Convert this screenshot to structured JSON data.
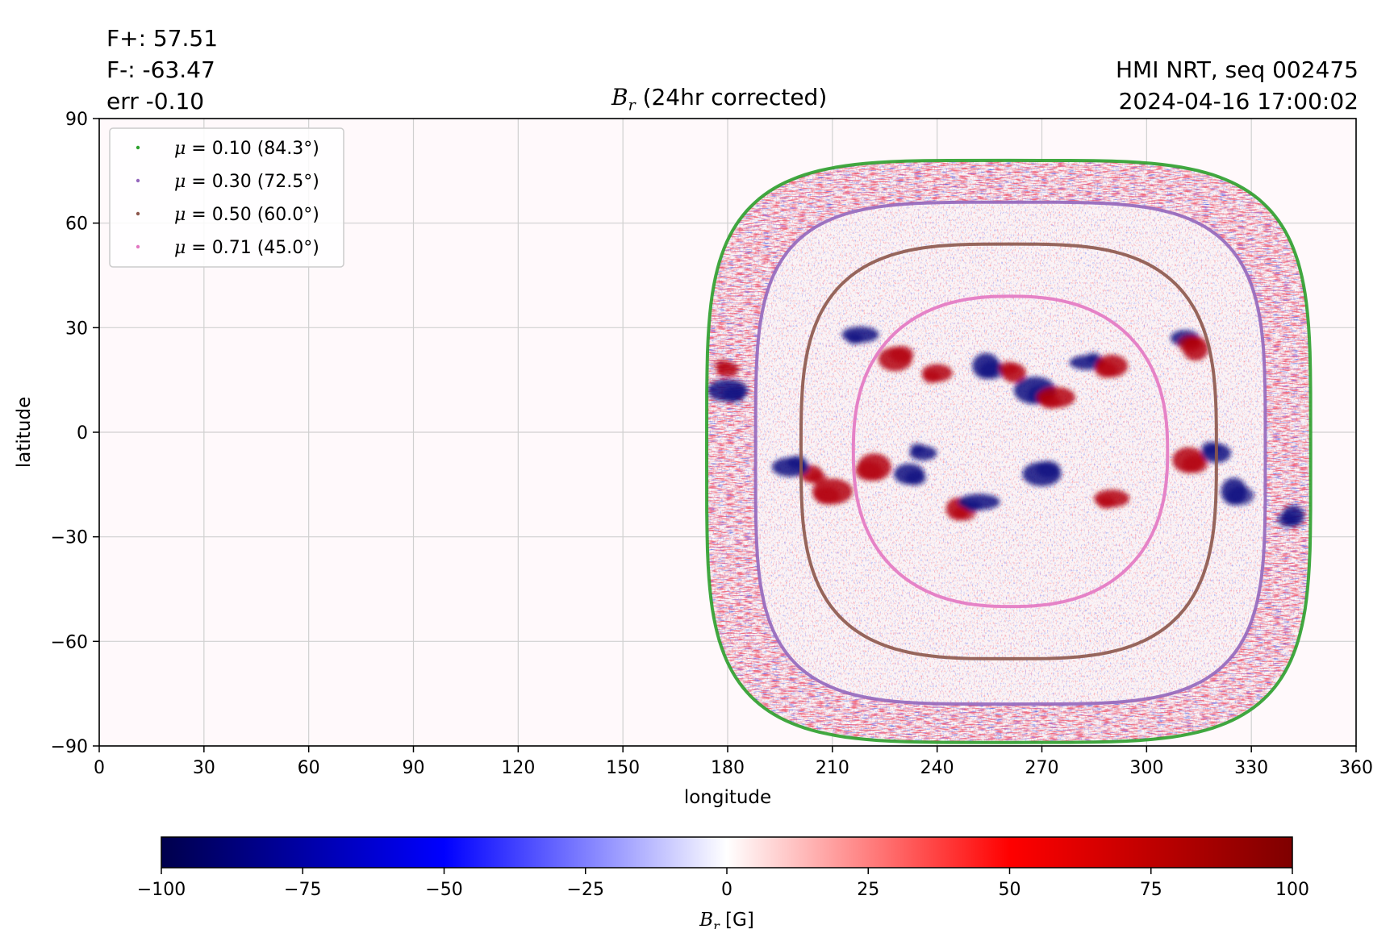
{
  "chart_data": {
    "type": "heatmap",
    "title": "B_r (24hr corrected)",
    "title_symbol": "B",
    "title_subscript": "r",
    "title_suffix": " (24hr corrected)",
    "xlabel": "longitude",
    "ylabel": "latitude",
    "xlim": [
      0,
      360
    ],
    "ylim": [
      -90,
      90
    ],
    "xticks": [
      0,
      30,
      60,
      90,
      120,
      150,
      180,
      210,
      240,
      270,
      300,
      330,
      360
    ],
    "yticks": [
      -90,
      -60,
      -30,
      0,
      30,
      60,
      90
    ],
    "grid": true,
    "legend_position": "top-left",
    "legend": [
      {
        "label": "μ = 0.10 (84.3°)",
        "color": "#2ca02c"
      },
      {
        "label": "μ = 0.30 (72.5°)",
        "color": "#9467bd"
      },
      {
        "label": "μ = 0.50 (60.0°)",
        "color": "#8c564b"
      },
      {
        "label": "μ = 0.71 (45.0°)",
        "color": "#e377c2"
      }
    ],
    "mu_contours": [
      {
        "mu": 0.1,
        "angle_deg": 84.3,
        "color": "#2ca02c",
        "lon_min": 174,
        "lon_max": 347,
        "lat_min": -89,
        "lat_max": 78
      },
      {
        "mu": 0.3,
        "angle_deg": 72.5,
        "color": "#9467bd",
        "lon_min": 188,
        "lon_max": 334,
        "lat_min": -78,
        "lat_max": 66
      },
      {
        "mu": 0.5,
        "angle_deg": 60.0,
        "color": "#8c564b",
        "lon_min": 201,
        "lon_max": 320,
        "lat_min": -65,
        "lat_max": 54
      },
      {
        "mu": 0.71,
        "angle_deg": 45.0,
        "color": "#e377c2",
        "lon_min": 216,
        "lon_max": 306,
        "lat_min": -50,
        "lat_max": 39
      }
    ],
    "active_regions": [
      {
        "lon": 180,
        "lat": 18,
        "sign": "+"
      },
      {
        "lon": 180,
        "lat": 12,
        "sign": "-"
      },
      {
        "lon": 218,
        "lat": 28,
        "sign": "-"
      },
      {
        "lon": 228,
        "lat": 21,
        "sign": "+"
      },
      {
        "lon": 240,
        "lat": 17,
        "sign": "+"
      },
      {
        "lon": 254,
        "lat": 19,
        "sign": "-"
      },
      {
        "lon": 262,
        "lat": 17,
        "sign": "+"
      },
      {
        "lon": 268,
        "lat": 12,
        "sign": "-"
      },
      {
        "lon": 274,
        "lat": 10,
        "sign": "+"
      },
      {
        "lon": 283,
        "lat": 20,
        "sign": "-"
      },
      {
        "lon": 290,
        "lat": 19,
        "sign": "+"
      },
      {
        "lon": 311,
        "lat": 27,
        "sign": "-"
      },
      {
        "lon": 314,
        "lat": 24,
        "sign": "+"
      },
      {
        "lon": 204,
        "lat": -12,
        "sign": "+"
      },
      {
        "lon": 210,
        "lat": -17,
        "sign": "+"
      },
      {
        "lon": 198,
        "lat": -10,
        "sign": "-"
      },
      {
        "lon": 222,
        "lat": -10,
        "sign": "+"
      },
      {
        "lon": 232,
        "lat": -12,
        "sign": "-"
      },
      {
        "lon": 236,
        "lat": -6,
        "sign": "-"
      },
      {
        "lon": 246,
        "lat": -22,
        "sign": "+"
      },
      {
        "lon": 252,
        "lat": -20,
        "sign": "-"
      },
      {
        "lon": 270,
        "lat": -12,
        "sign": "-"
      },
      {
        "lon": 290,
        "lat": -19,
        "sign": "+"
      },
      {
        "lon": 312,
        "lat": -8,
        "sign": "+"
      },
      {
        "lon": 320,
        "lat": -6,
        "sign": "-"
      },
      {
        "lon": 325,
        "lat": -17,
        "sign": "-"
      },
      {
        "lon": 342,
        "lat": -24,
        "sign": "-"
      }
    ],
    "colorbar": {
      "label": "B_r [G]",
      "label_symbol": "B",
      "label_subscript": "r",
      "label_suffix": " [G]",
      "range": [
        -100,
        100
      ],
      "ticks": [
        -100,
        -75,
        -50,
        -25,
        0,
        25,
        50,
        75,
        100
      ],
      "tick_labels": [
        "−100",
        "−75",
        "−50",
        "−25",
        "0",
        "25",
        "50",
        "75",
        "100"
      ],
      "colors": [
        "#00004c",
        "#0000ff",
        "#ffffff",
        "#ff0000",
        "#7f0000"
      ]
    }
  },
  "header": {
    "flux_pos": "F+: 57.51",
    "flux_neg": "F-: -63.47",
    "flux_err": "err -0.10",
    "source": "HMI NRT, seq 002475",
    "timestamp": "2024-04-16 17:00:02"
  },
  "colors": {
    "plot_background": "#fff9fb",
    "grid": "#d0d0d0"
  }
}
